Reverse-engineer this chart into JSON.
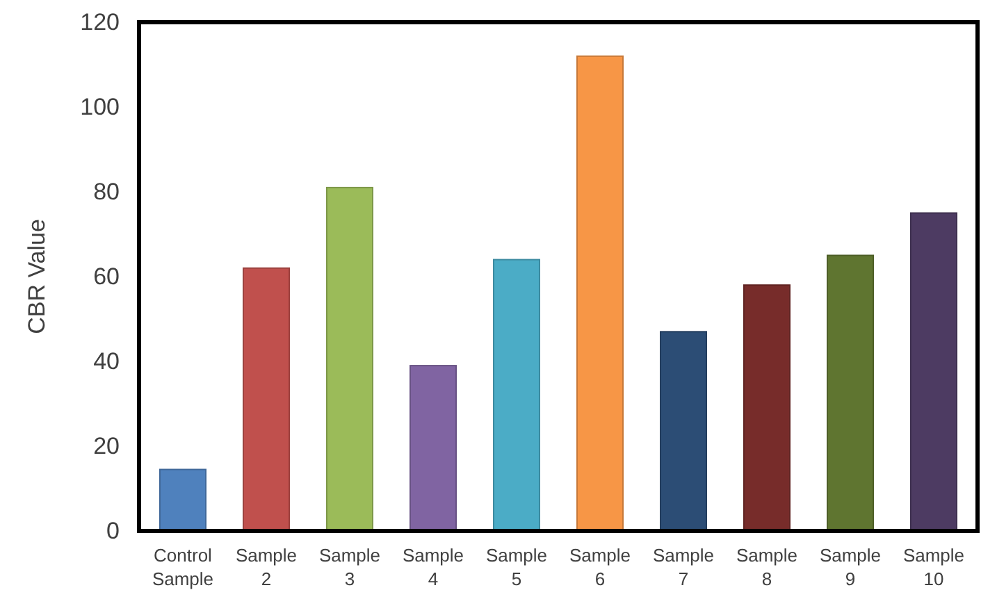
{
  "chart_data": {
    "type": "bar",
    "ylabel": "CBR Value",
    "categories": [
      "Control Sample",
      "Sample 2",
      "Sample 3",
      "Sample 4",
      "Sample 5",
      "Sample 6",
      "Sample 7",
      "Sample 8",
      "Sample 9",
      "Sample 10"
    ],
    "values": [
      14.5,
      62,
      81,
      39,
      64,
      112,
      47,
      58,
      65,
      75
    ],
    "colors": [
      "#4f81bd",
      "#c0504d",
      "#9bbb59",
      "#8064a2",
      "#4bacc6",
      "#f79646",
      "#2c4d75",
      "#772c2a",
      "#5f7530",
      "#4d3b62"
    ],
    "ylim": [
      0,
      120
    ],
    "yticks": [
      0,
      20,
      40,
      60,
      80,
      100,
      120
    ],
    "grid": false
  }
}
